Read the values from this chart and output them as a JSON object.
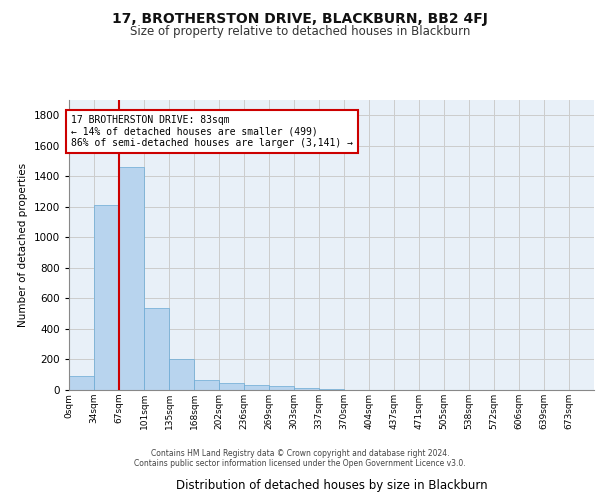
{
  "title": "17, BROTHERSTON DRIVE, BLACKBURN, BB2 4FJ",
  "subtitle": "Size of property relative to detached houses in Blackburn",
  "xlabel": "Distribution of detached houses by size in Blackburn",
  "ylabel": "Number of detached properties",
  "bar_labels": [
    "0sqm",
    "34sqm",
    "67sqm",
    "101sqm",
    "135sqm",
    "168sqm",
    "202sqm",
    "236sqm",
    "269sqm",
    "303sqm",
    "337sqm",
    "370sqm",
    "404sqm",
    "437sqm",
    "471sqm",
    "505sqm",
    "538sqm",
    "572sqm",
    "606sqm",
    "639sqm",
    "673sqm"
  ],
  "bar_values": [
    90,
    1210,
    1460,
    540,
    205,
    65,
    47,
    35,
    28,
    10,
    5,
    3,
    2,
    1,
    1,
    0,
    0,
    0,
    0,
    0,
    0
  ],
  "bar_color": "#b8d4ee",
  "bar_edge_color": "#6aaad4",
  "grid_color": "#cccccc",
  "background_color": "#e8f0f8",
  "annotation_text": "17 BROTHERSTON DRIVE: 83sqm\n← 14% of detached houses are smaller (499)\n86% of semi-detached houses are larger (3,141) →",
  "annotation_box_color": "#ffffff",
  "annotation_border_color": "#cc0000",
  "property_line_color": "#cc0000",
  "property_line_x": 2.0,
  "ylim": [
    0,
    1900
  ],
  "yticks": [
    0,
    200,
    400,
    600,
    800,
    1000,
    1200,
    1400,
    1600,
    1800
  ],
  "footer_line1": "Contains HM Land Registry data © Crown copyright and database right 2024.",
  "footer_line2": "Contains public sector information licensed under the Open Government Licence v3.0."
}
